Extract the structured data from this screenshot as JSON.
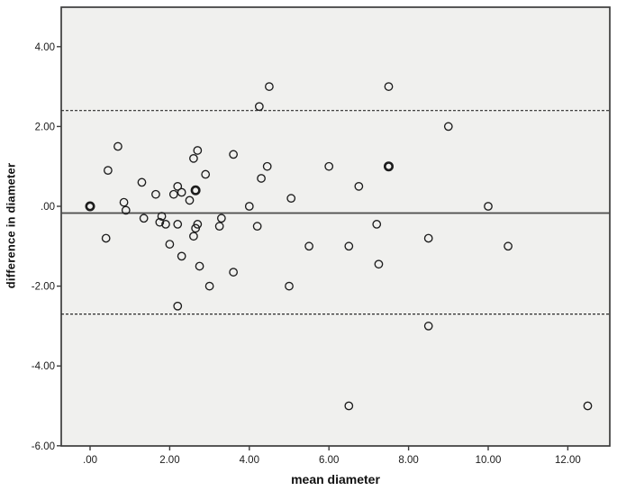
{
  "figure": {
    "background_color": "#ffffff",
    "plot_background_color": "#f0f0ee",
    "frame_color": "#3c3c3c",
    "marker_color": "#1c1c1c",
    "mean_line_color": "#4a4a4a",
    "loa_line_color": "#2b2b2b",
    "tick_label_color": "#1a1a1a"
  },
  "chart_data": {
    "type": "scatter",
    "title": "",
    "xlabel": "mean diameter",
    "ylabel": "difference in diameter",
    "legend": "none",
    "grid": false,
    "xlim": [
      -0.72,
      13.05
    ],
    "ylim": [
      -6.0,
      5.0
    ],
    "x_tick_labels": [
      ".00",
      "2.00",
      "4.00",
      "6.00",
      "8.00",
      "10.00",
      "12.00"
    ],
    "x_tick_values": [
      0,
      2,
      4,
      6,
      8,
      10,
      12
    ],
    "y_tick_labels": [
      "4.00",
      "2.00",
      ".00",
      "-2.00",
      "-4.00",
      "-6.00"
    ],
    "y_tick_values": [
      4,
      2,
      0,
      -2,
      -4,
      -6
    ],
    "reference_lines": {
      "mean": -0.17,
      "upper_loa": 2.4,
      "lower_loa": -2.7
    },
    "points": [
      [
        4.5,
        3.0
      ],
      [
        7.5,
        3.0
      ],
      [
        4.25,
        2.5
      ],
      [
        9.0,
        2.0
      ],
      [
        0.7,
        1.5
      ],
      [
        2.7,
        1.4
      ],
      [
        3.6,
        1.3
      ],
      [
        2.6,
        1.2
      ],
      [
        4.45,
        1.0
      ],
      [
        6.0,
        1.0
      ],
      [
        0.45,
        0.9
      ],
      [
        2.9,
        0.8
      ],
      [
        4.3,
        0.7
      ],
      [
        1.3,
        0.6
      ],
      [
        6.75,
        0.5
      ],
      [
        2.2,
        0.5
      ],
      [
        1.65,
        0.3
      ],
      [
        2.1,
        0.3
      ],
      [
        2.3,
        0.35
      ],
      [
        5.05,
        0.2
      ],
      [
        2.5,
        0.15
      ],
      [
        0.85,
        0.1
      ],
      [
        4.0,
        0.0
      ],
      [
        10.0,
        0.0
      ],
      [
        0.9,
        -0.1
      ],
      [
        1.8,
        -0.25
      ],
      [
        1.35,
        -0.3
      ],
      [
        3.3,
        -0.3
      ],
      [
        1.75,
        -0.4
      ],
      [
        1.9,
        -0.45
      ],
      [
        2.2,
        -0.45
      ],
      [
        2.7,
        -0.45
      ],
      [
        7.2,
        -0.45
      ],
      [
        3.25,
        -0.5
      ],
      [
        4.2,
        -0.5
      ],
      [
        2.65,
        -0.55
      ],
      [
        2.6,
        -0.75
      ],
      [
        0.4,
        -0.8
      ],
      [
        8.5,
        -0.8
      ],
      [
        2.0,
        -0.95
      ],
      [
        5.5,
        -1.0
      ],
      [
        6.5,
        -1.0
      ],
      [
        10.5,
        -1.0
      ],
      [
        2.3,
        -1.25
      ],
      [
        2.75,
        -1.5
      ],
      [
        7.25,
        -1.45
      ],
      [
        3.6,
        -1.65
      ],
      [
        3.0,
        -2.0
      ],
      [
        5.0,
        -2.0
      ],
      [
        2.2,
        -2.5
      ],
      [
        8.5,
        -3.0
      ],
      [
        6.5,
        -5.0
      ],
      [
        12.5,
        -5.0
      ]
    ],
    "overlap_points": [
      [
        0.0,
        0.0
      ],
      [
        2.65,
        0.4
      ],
      [
        7.5,
        1.0
      ]
    ]
  }
}
